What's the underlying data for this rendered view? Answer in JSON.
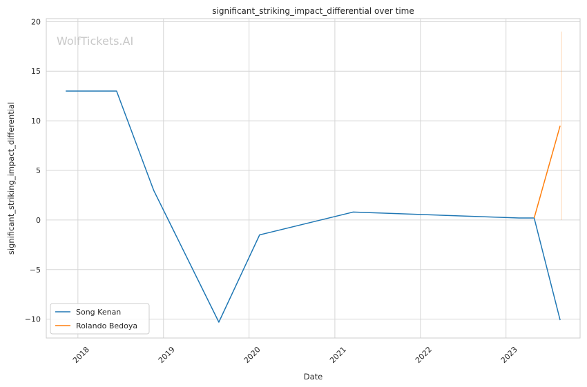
{
  "chart_data": {
    "type": "line",
    "title": "significant_striking_impact_differential over time",
    "xlabel": "Date",
    "ylabel": "significant_striking_impact_differential",
    "watermark": "WolfTickets.AI",
    "ylim": [
      -11.9,
      20.3
    ],
    "xlim": [
      "2017-08-19",
      "2023-11-13"
    ],
    "y_ticks": [
      20,
      15,
      10,
      5,
      0,
      -5,
      -10
    ],
    "y_tick_labels": [
      "20",
      "15",
      "10",
      "5",
      "0",
      "−5",
      "−10"
    ],
    "x_ticks": [
      "2018-01-01",
      "2019-01-01",
      "2020-01-01",
      "2021-01-01",
      "2022-01-01",
      "2023-01-01"
    ],
    "x_tick_labels": [
      "2018",
      "2019",
      "2020",
      "2021",
      "2022",
      "2023"
    ],
    "grid": true,
    "legend_position": "lower-left",
    "series": [
      {
        "name": "Song Kenan",
        "color": "#1f77b4",
        "x": [
          "2017-11-10",
          "2018-06-15",
          "2018-11-20",
          "2019-08-25",
          "2020-02-15",
          "2021-03-20",
          "2023-02-25",
          "2023-05-01",
          "2023-08-20"
        ],
        "y": [
          13.0,
          13.0,
          3.0,
          -10.3,
          -1.5,
          0.8,
          0.2,
          0.2,
          -10.1
        ]
      },
      {
        "name": "Rolando Bedoya",
        "color": "#ff7f0e",
        "x": [
          "2023-05-01",
          "2023-08-20"
        ],
        "y": [
          0.2,
          9.5
        ]
      }
    ],
    "error_band": {
      "series": "Rolando Bedoya",
      "x": "2023-08-26",
      "y_low": 0,
      "y_high": 19
    }
  }
}
